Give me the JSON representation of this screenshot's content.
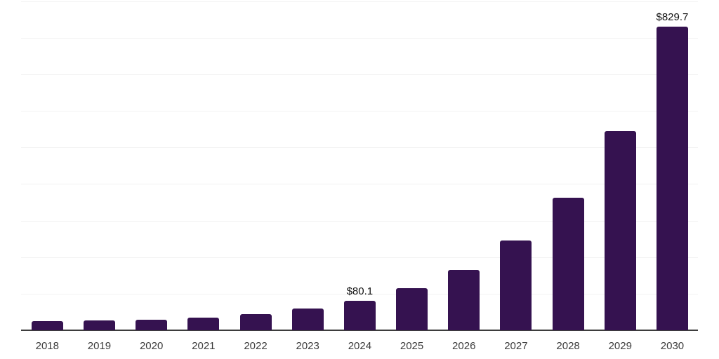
{
  "chart": {
    "background_color": "#ffffff",
    "bar_color": "#351250",
    "axis_line_color": "#3d3d3d",
    "gridline_color": "#f2f2f2",
    "tick_label_color": "#3c3c3c",
    "data_label_color": "#111111"
  },
  "chart_data": {
    "type": "bar",
    "categories": [
      "2018",
      "2019",
      "2020",
      "2021",
      "2022",
      "2023",
      "2024",
      "2025",
      "2026",
      "2027",
      "2028",
      "2029",
      "2030"
    ],
    "values": [
      25,
      27,
      28,
      35,
      45,
      59,
      80.1,
      115,
      165,
      246,
      362,
      544,
      829.7
    ],
    "data_labels": [
      {
        "category": "2024",
        "text": "$80.1"
      },
      {
        "category": "2030",
        "text": "$829.7"
      }
    ],
    "title": "",
    "xlabel": "",
    "ylabel": "",
    "ylim": [
      0,
      900
    ],
    "gridline_step": 100,
    "grid": "horizontal",
    "y_tick_labels_visible": false,
    "legend": "none"
  }
}
